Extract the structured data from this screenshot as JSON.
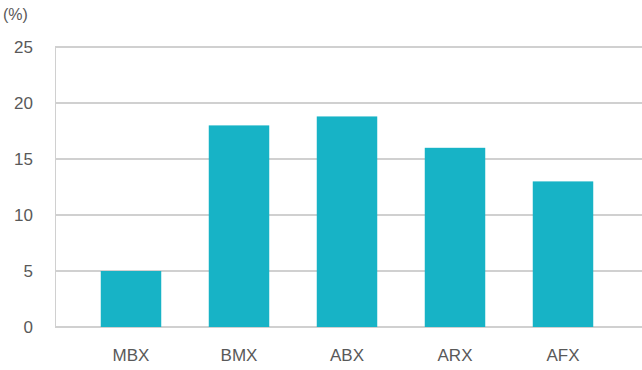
{
  "chart_data": {
    "type": "bar",
    "y_label": "(%)",
    "categories": [
      "MBX",
      "BMX",
      "ABX",
      "ARX",
      "AFX"
    ],
    "values": [
      5,
      18,
      18.8,
      16,
      13
    ],
    "color": "#17b3c6",
    "ylim": [
      0,
      25
    ],
    "yticks": [
      0,
      5,
      10,
      15,
      20,
      25
    ],
    "grid": true
  }
}
